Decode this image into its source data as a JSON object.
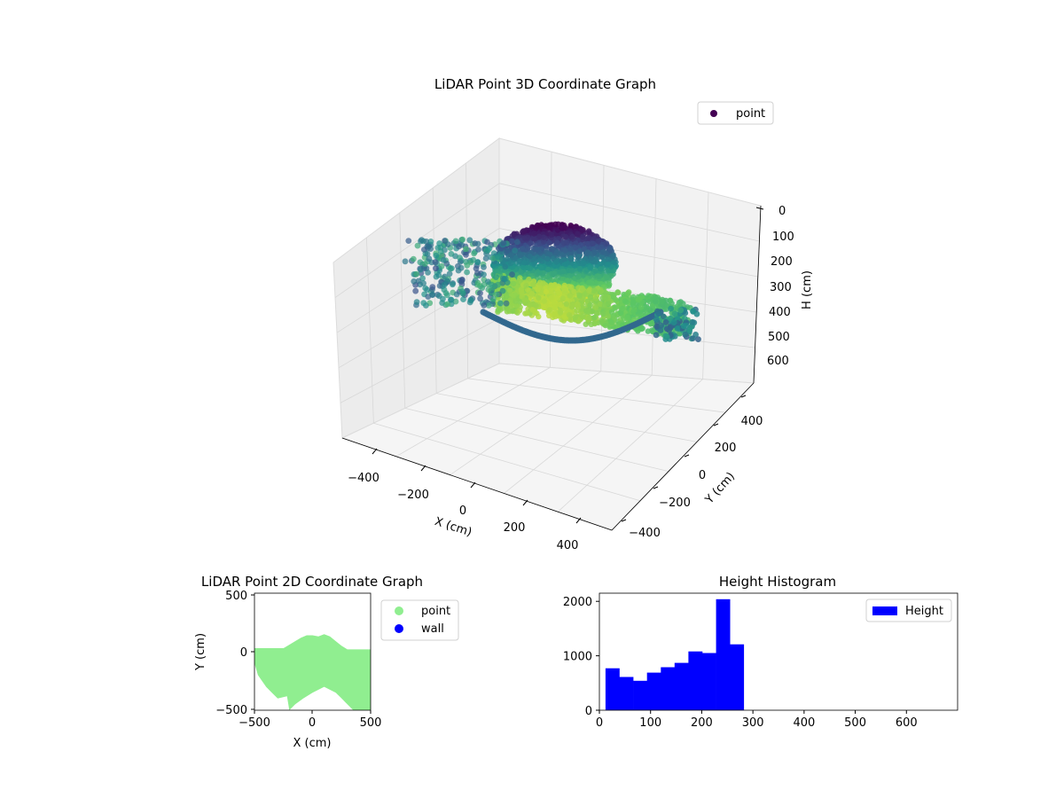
{
  "colors": {
    "point2d": "#90ee90",
    "wall": "#0000ff",
    "hist": "#0000ff",
    "legend3d": "#440154"
  },
  "chart_data": [
    {
      "type": "scatter3d",
      "title": "LiDAR Point 3D Coordinate Graph",
      "xlabel": "X (cm)",
      "ylabel": "Y (cm)",
      "zlabel": "H (cm)",
      "xlim": [
        -500,
        500
      ],
      "ylim": [
        -500,
        500
      ],
      "zlim": [
        0,
        680
      ],
      "z_inverted": true,
      "colormap": "viridis",
      "x_ticks": [
        "−400",
        "−200",
        "0",
        "200",
        "400"
      ],
      "y_ticks": [
        "−400",
        "−200",
        "0",
        "200",
        "400"
      ],
      "z_ticks": [
        "0",
        "100",
        "200",
        "300",
        "400",
        "500",
        "600"
      ],
      "legend": {
        "entries": [
          "point"
        ],
        "placement": "upper-right"
      },
      "grid": true
    },
    {
      "type": "scatter",
      "title": "LiDAR Point 2D Coordinate Graph",
      "xlabel": "X (cm)",
      "ylabel": "Y (cm)",
      "xlim": [
        -500,
        500
      ],
      "ylim": [
        -500,
        500
      ],
      "x_ticks": [
        "−500",
        "0",
        "500"
      ],
      "y_ticks": [
        "−500",
        "0",
        "500"
      ],
      "legend": {
        "entries": [
          "point",
          "wall"
        ],
        "placement": "outside-right"
      },
      "series": [
        {
          "name": "point",
          "outline": [
            [
              -500,
              30
            ],
            [
              -470,
              30
            ],
            [
              -300,
              30
            ],
            [
              -250,
              30
            ],
            [
              -200,
              60
            ],
            [
              -150,
              90
            ],
            [
              -100,
              120
            ],
            [
              -50,
              140
            ],
            [
              0,
              140
            ],
            [
              50,
              130
            ],
            [
              100,
              150
            ],
            [
              150,
              130
            ],
            [
              200,
              90
            ],
            [
              250,
              50
            ],
            [
              300,
              20
            ],
            [
              400,
              20
            ],
            [
              500,
              20
            ],
            [
              500,
              -500
            ],
            [
              350,
              -500
            ],
            [
              300,
              -450
            ],
            [
              250,
              -400
            ],
            [
              200,
              -350
            ],
            [
              100,
              -300
            ],
            [
              0,
              -350
            ],
            [
              -80,
              -400
            ],
            [
              -150,
              -450
            ],
            [
              -200,
              -500
            ],
            [
              -220,
              -380
            ],
            [
              -300,
              -400
            ],
            [
              -350,
              -350
            ],
            [
              -400,
              -300
            ],
            [
              -470,
              -200
            ],
            [
              -500,
              -100
            ]
          ]
        },
        {
          "name": "wall",
          "points": []
        }
      ]
    },
    {
      "type": "histogram",
      "title": "Height Histogram",
      "xlim": [
        0,
        700
      ],
      "ylim": [
        0,
        2150
      ],
      "x_ticks": [
        "0",
        "100",
        "200",
        "300",
        "400",
        "500",
        "600"
      ],
      "y_ticks": [
        "0",
        "1000",
        "2000"
      ],
      "legend": {
        "entries": [
          "Height"
        ],
        "placement": "upper-right"
      },
      "series": [
        {
          "name": "Height",
          "bins": [
            12,
            39,
            66,
            93,
            120,
            147,
            174,
            201,
            228,
            255,
            282
          ],
          "counts": [
            770,
            610,
            540,
            690,
            790,
            870,
            1080,
            1050,
            2040,
            1210
          ]
        }
      ]
    }
  ]
}
